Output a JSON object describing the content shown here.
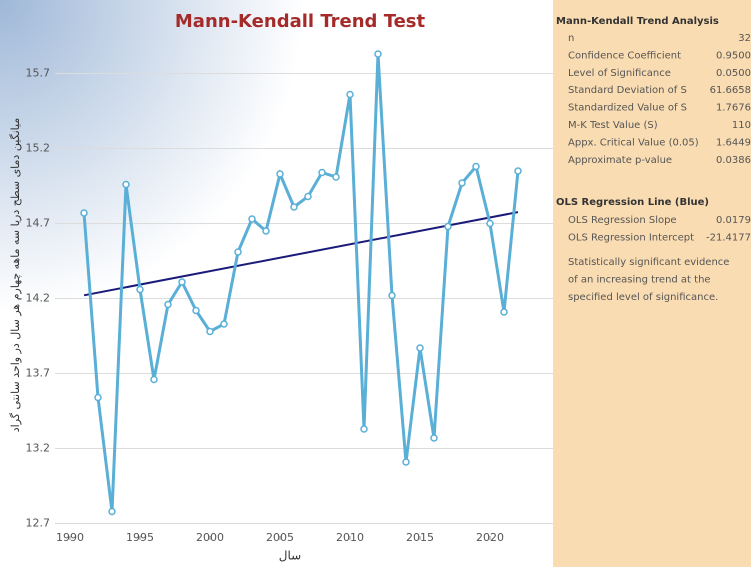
{
  "chart_data": {
    "type": "line",
    "title": "Mann-Kendall Trend Test",
    "x_label": "سال",
    "y_label": "میانگین دمای سطح دریا سه ماهه چهارم هر سال در واحد سانتی گراد",
    "x": [
      1991,
      1992,
      1993,
      1994,
      1995,
      1996,
      1997,
      1998,
      1999,
      2000,
      2001,
      2002,
      2003,
      2004,
      2005,
      2006,
      2007,
      2008,
      2009,
      2010,
      2011,
      2012,
      2013,
      2014,
      2015,
      2016,
      2017,
      2018,
      2019,
      2020,
      2021,
      2022
    ],
    "series": [
      {
        "name": "Sea surface temperature",
        "color": "#5aafd6",
        "values": [
          14.77,
          13.54,
          12.78,
          14.96,
          14.26,
          13.66,
          14.16,
          14.31,
          14.12,
          13.98,
          14.03,
          14.51,
          14.73,
          14.65,
          15.03,
          14.81,
          14.88,
          15.04,
          15.01,
          15.56,
          13.33,
          15.83,
          14.22,
          13.11,
          13.87,
          13.27,
          14.68,
          14.97,
          15.08,
          14.7,
          14.11,
          15.05
        ]
      }
    ],
    "regression_color": "#1a1a7a",
    "xlim": [
      1990,
      2022.5
    ],
    "xticks": [
      1990,
      1995,
      2000,
      2005,
      2010,
      2015,
      2020
    ],
    "ylim": [
      12.59,
      16.11
    ],
    "yticks": [
      12.7,
      13.2,
      13.7,
      14.2,
      14.7,
      15.2,
      15.7
    ],
    "grid": true
  },
  "panel": {
    "heading1": "Mann-Kendall Trend Analysis",
    "rows1": [
      [
        "n",
        "32"
      ],
      [
        "Confidence Coefficient",
        "0.9500"
      ],
      [
        "Level of Significance",
        "0.0500"
      ],
      [
        "Standard Deviation of S",
        "61.6658"
      ],
      [
        "Standardized Value of S",
        "1.7676"
      ],
      [
        "M-K Test Value (S)",
        "110"
      ],
      [
        "Appx. Critical Value (0.05)",
        "1.6449"
      ],
      [
        "Approximate p-value",
        "0.0386"
      ]
    ],
    "heading2": "OLS Regression Line (Blue)",
    "rows2": [
      [
        "OLS Regression Slope",
        "0.0179"
      ],
      [
        "OLS Regression Intercept",
        "-21.4177"
      ]
    ],
    "note": [
      "Statistically significant evidence",
      "of an increasing trend at the",
      "specified level of significance."
    ]
  }
}
